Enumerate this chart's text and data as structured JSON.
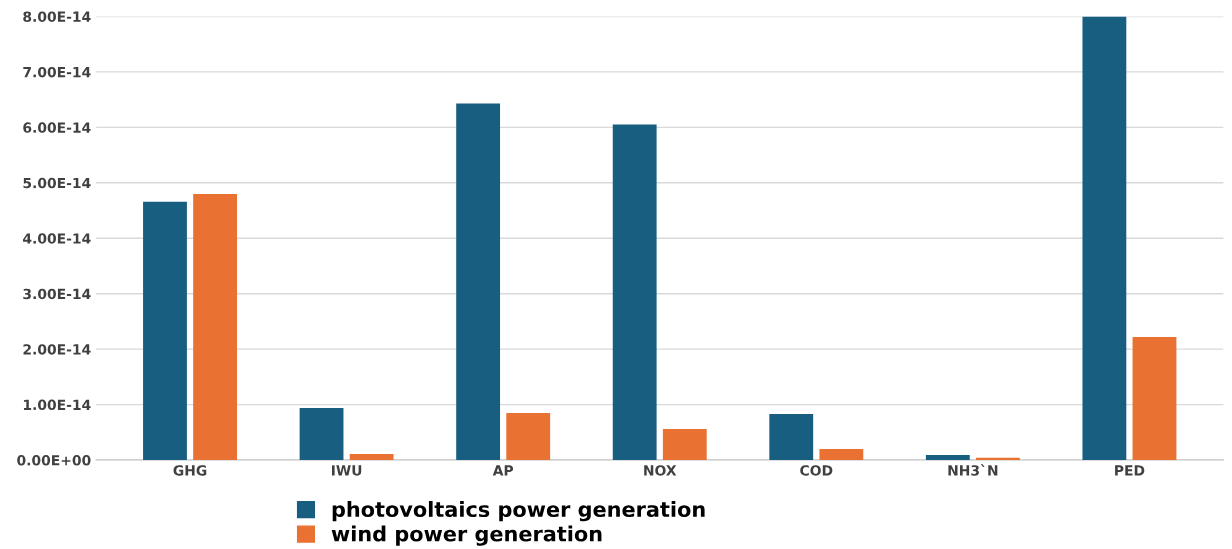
{
  "chart_data": {
    "type": "bar",
    "categories": [
      "GHG",
      "IWU",
      "AP",
      "NOX",
      "COD",
      "NH3`N",
      "PED"
    ],
    "series": [
      {
        "name": "photovoltaics power generation",
        "color": "#175e80",
        "values": [
          4.66e-14,
          9.4e-15,
          6.43e-14,
          6.05e-14,
          8.3e-15,
          9e-16,
          8e-14
        ]
      },
      {
        "name": "wind power generation",
        "color": "#e97132",
        "values": [
          4.8e-14,
          1.1e-15,
          8.5e-15,
          5.6e-15,
          2e-15,
          4e-16,
          2.22e-14
        ]
      }
    ],
    "ylim": [
      0,
      8e-14
    ],
    "yticks": [
      {
        "value": 0,
        "label": "0.00E+00"
      },
      {
        "value": 1e-14,
        "label": "1.00E-14"
      },
      {
        "value": 2e-14,
        "label": "2.00E-14"
      },
      {
        "value": 3e-14,
        "label": "3.00E-14"
      },
      {
        "value": 4e-14,
        "label": "4.00E-14"
      },
      {
        "value": 5e-14,
        "label": "5.00E-14"
      },
      {
        "value": 6e-14,
        "label": "6.00E-14"
      },
      {
        "value": 7e-14,
        "label": "7.00E-14"
      },
      {
        "value": 8e-14,
        "label": "8.00E-14"
      }
    ],
    "grid": "y",
    "legend": "bottom"
  }
}
